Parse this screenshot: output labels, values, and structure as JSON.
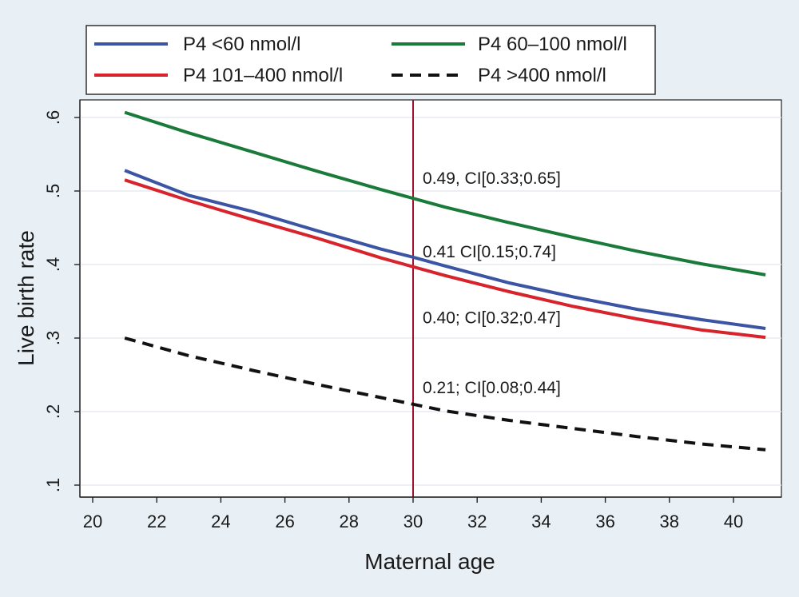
{
  "chart_data": {
    "type": "line",
    "xlabel": "Maternal age",
    "ylabel": "Live birth rate",
    "xlim": [
      20,
      41
    ],
    "ylim": [
      0.1,
      0.62
    ],
    "xticks": [
      {
        "value": 20,
        "label": "20"
      },
      {
        "value": 22,
        "label": "22"
      },
      {
        "value": 24,
        "label": "24"
      },
      {
        "value": 26,
        "label": "26"
      },
      {
        "value": 28,
        "label": "28"
      },
      {
        "value": 30,
        "label": "30"
      },
      {
        "value": 32,
        "label": "32"
      },
      {
        "value": 34,
        "label": "34"
      },
      {
        "value": 36,
        "label": "36"
      },
      {
        "value": 38,
        "label": "38"
      },
      {
        "value": 40,
        "label": "40"
      }
    ],
    "yticks": [
      {
        "value": 0.1,
        "label": ".1"
      },
      {
        "value": 0.2,
        "label": ".2"
      },
      {
        "value": 0.3,
        "label": ".3"
      },
      {
        "value": 0.4,
        "label": ".4"
      },
      {
        "value": 0.5,
        "label": ".5"
      },
      {
        "value": 0.6,
        "label": ".6"
      }
    ],
    "series": [
      {
        "name": "P4 <60 nmol/l",
        "color": "#3b54a3",
        "dash": "solid",
        "x": [
          21,
          23,
          25,
          27,
          29,
          30,
          31,
          33,
          35,
          37,
          39,
          41
        ],
        "y": [
          0.528,
          0.494,
          0.472,
          0.446,
          0.421,
          0.41,
          0.398,
          0.375,
          0.356,
          0.339,
          0.325,
          0.313
        ]
      },
      {
        "name": "P4 60–100 nmol/l",
        "color": "#1a7a3a",
        "dash": "solid",
        "x": [
          21,
          23,
          25,
          27,
          29,
          30,
          31,
          33,
          35,
          37,
          39,
          41
        ],
        "y": [
          0.607,
          0.579,
          0.553,
          0.527,
          0.502,
          0.49,
          0.478,
          0.457,
          0.437,
          0.418,
          0.401,
          0.386
        ]
      },
      {
        "name": "P4 101–400 nmol/l",
        "color": "#d6232c",
        "dash": "solid",
        "x": [
          21,
          23,
          25,
          27,
          29,
          30,
          31,
          33,
          35,
          37,
          39,
          41
        ],
        "y": [
          0.515,
          0.487,
          0.461,
          0.436,
          0.409,
          0.397,
          0.385,
          0.363,
          0.343,
          0.326,
          0.311,
          0.301
        ]
      },
      {
        "name": "P4 >400 nmol/l",
        "color": "#111111",
        "dash": "dashed",
        "x": [
          21,
          23,
          25,
          27,
          29,
          30,
          31,
          33,
          35,
          37,
          39,
          41
        ],
        "y": [
          0.3,
          0.276,
          0.256,
          0.237,
          0.219,
          0.21,
          0.201,
          0.188,
          0.177,
          0.166,
          0.156,
          0.148
        ]
      }
    ],
    "reference_line": {
      "x": 30,
      "color": "#a0102a"
    },
    "annotations": [
      {
        "text": "0.49, CI[0.33;0.65]",
        "x": 30.3,
        "y": 0.51
      },
      {
        "text": "0.41 CI[0.15;0.74]",
        "x": 30.3,
        "y": 0.41
      },
      {
        "text": "0.40; CI[0.32;0.47]",
        "x": 30.3,
        "y": 0.32
      },
      {
        "text": "0.21; CI[0.08;0.44]",
        "x": 30.3,
        "y": 0.225
      }
    ],
    "legend_position": "top",
    "grid": true
  }
}
